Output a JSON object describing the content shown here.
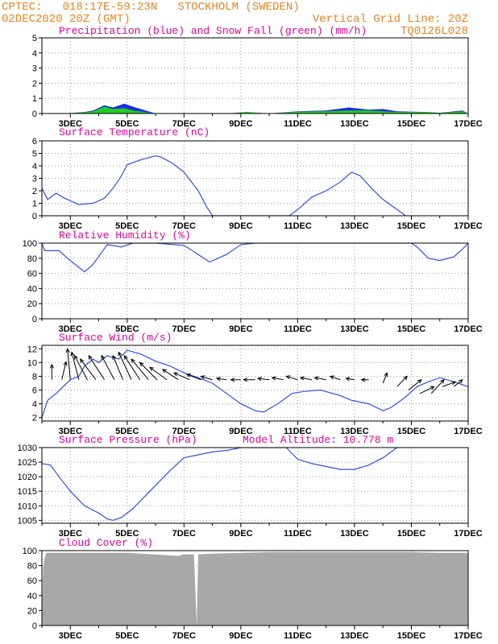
{
  "header": {
    "line1_left": "CPTEC:   018:17E-59:23N   STOCKHOLM (SWEDEN)",
    "line2_left": "02DEC2020 20Z (GMT)",
    "line1_right": "Vertical Grid Line: 20Z",
    "line2_right": "TQ0126L028"
  },
  "colors": {
    "header": "#e8821e",
    "title": "#e000a0",
    "line": "#3050e0",
    "rain": "#1a2ee8",
    "snow": "#22cc22",
    "cloud": "#a8a8a8"
  },
  "x_axis": {
    "start_day": 2,
    "end_day": 17,
    "tick_labels": [
      "3DEC",
      "5DEC",
      "7DEC",
      "9DEC",
      "11DEC",
      "13DEC",
      "15DEC",
      "17DEC"
    ],
    "tick_days": [
      3,
      5,
      7,
      9,
      11,
      13,
      15,
      17
    ],
    "vertical_grid_time": "20Z"
  },
  "chart_data": [
    {
      "id": "precip",
      "type": "area",
      "title": "Precipitation (blue) and Snow Fall (green) (mm/h)",
      "ylim": [
        0,
        5
      ],
      "yticks": [
        0,
        1,
        2,
        3,
        4,
        5
      ],
      "grid": true,
      "series": [
        {
          "name": "blue",
          "color": "#1a2ee8",
          "x": [
            2.0,
            3.0,
            3.1,
            3.5,
            3.8,
            4.2,
            4.5,
            4.9,
            5.2,
            6.0,
            8.5,
            9.2,
            10.0,
            11.0,
            12.0,
            12.8,
            13.5,
            14.0,
            14.5,
            15.5,
            16.0,
            16.8,
            17.0
          ],
          "y": [
            0.0,
            0.0,
            0.05,
            0.1,
            0.2,
            0.55,
            0.4,
            0.65,
            0.45,
            0.0,
            0.0,
            0.1,
            0.0,
            0.15,
            0.2,
            0.4,
            0.25,
            0.3,
            0.15,
            0.1,
            0.05,
            0.2,
            0.0
          ]
        },
        {
          "name": "green",
          "color": "#22cc22",
          "x": [
            2.0,
            3.0,
            3.1,
            3.5,
            3.8,
            4.2,
            4.5,
            4.9,
            5.2,
            6.0,
            8.5,
            9.2,
            10.0,
            11.0,
            12.0,
            12.8,
            13.5,
            14.0,
            14.5,
            15.5,
            16.0,
            16.8,
            17.0
          ],
          "y": [
            0.0,
            0.0,
            0.05,
            0.08,
            0.15,
            0.45,
            0.3,
            0.35,
            0.2,
            0.0,
            0.0,
            0.1,
            0.0,
            0.12,
            0.15,
            0.2,
            0.2,
            0.15,
            0.1,
            0.1,
            0.05,
            0.15,
            0.0
          ]
        }
      ]
    },
    {
      "id": "temp",
      "type": "line",
      "title": "Surface Temperature (nC)",
      "ylim": [
        0,
        6
      ],
      "yticks": [
        0,
        1,
        2,
        3,
        4,
        5,
        6
      ],
      "grid": true,
      "series": [
        {
          "name": "",
          "color": "#3050e0",
          "x": [
            2.0,
            2.2,
            2.5,
            2.8,
            3.0,
            3.3,
            3.8,
            4.2,
            4.5,
            4.8,
            5.0,
            5.5,
            6.0,
            6.2,
            6.6,
            7.0,
            7.5,
            7.8,
            8.0,
            10.7,
            11.0,
            11.5,
            12.0,
            12.5,
            12.9,
            13.2,
            13.6,
            14.0,
            14.5,
            14.8
          ],
          "y": [
            2.2,
            1.3,
            1.8,
            1.4,
            1.2,
            0.9,
            1.0,
            1.4,
            2.2,
            3.2,
            4.1,
            4.5,
            4.8,
            4.7,
            4.2,
            3.5,
            2.0,
            0.7,
            0.0,
            0.0,
            0.5,
            1.5,
            2.0,
            2.7,
            3.5,
            3.2,
            2.2,
            1.3,
            0.5,
            0.0
          ]
        }
      ]
    },
    {
      "id": "rh",
      "type": "line",
      "title": "Relative Humidity (%)",
      "ylim": [
        0,
        100
      ],
      "yticks": [
        0,
        20,
        40,
        60,
        80,
        100
      ],
      "grid": true,
      "series": [
        {
          "name": "",
          "color": "#3050e0",
          "x": [
            2.0,
            2.1,
            2.6,
            2.9,
            3.3,
            3.5,
            3.8,
            4.3,
            4.8,
            5.2,
            6.0,
            7.0,
            7.5,
            7.9,
            8.5,
            9.0,
            9.5,
            11.0,
            13.0,
            15.0,
            15.2,
            15.6,
            16.0,
            16.5,
            16.8,
            17.0
          ],
          "y": [
            100,
            90,
            90,
            80,
            68,
            62,
            72,
            98,
            95,
            100,
            100,
            97,
            85,
            75,
            85,
            98,
            100,
            100,
            100,
            100,
            95,
            80,
            77,
            82,
            92,
            100
          ]
        }
      ]
    },
    {
      "id": "wind",
      "type": "line",
      "title": "Surface Wind (m/s)",
      "ylim": [
        1.5,
        12.5
      ],
      "yticks": [
        2,
        4,
        6,
        8,
        10,
        12
      ],
      "grid": true,
      "series": [
        {
          "name": "",
          "color": "#3050e0",
          "x": [
            2.0,
            2.2,
            2.5,
            3.0,
            3.3,
            3.5,
            3.8,
            4.0,
            4.3,
            4.7,
            5.0,
            5.5,
            6.0,
            6.5,
            7.0,
            7.5,
            8.0,
            8.5,
            9.0,
            9.5,
            9.8,
            10.3,
            10.8,
            11.2,
            11.8,
            12.5,
            12.9,
            13.5,
            14.0,
            14.3,
            14.8,
            15.2,
            15.6,
            16.0,
            16.5,
            17.0
          ],
          "y": [
            2.0,
            4.5,
            5.5,
            7.5,
            8.0,
            9.5,
            10.5,
            10.0,
            11.0,
            10.5,
            11.8,
            11.2,
            10.2,
            9.5,
            8.5,
            7.8,
            7.0,
            5.5,
            4.0,
            3.0,
            2.8,
            4.0,
            5.5,
            5.8,
            6.0,
            5.2,
            4.5,
            4.0,
            3.0,
            3.5,
            5.0,
            6.5,
            7.2,
            7.8,
            7.2,
            6.5
          ]
        }
      ],
      "barbs": {
        "x": [
          2.35,
          2.7,
          3.0,
          3.3,
          3.6,
          3.9,
          4.2,
          4.55,
          4.85,
          5.15,
          5.45,
          5.75,
          6.05,
          6.4,
          6.8,
          7.2,
          7.6,
          8.0,
          8.5,
          9.0,
          9.5,
          10.0,
          10.5,
          11.0,
          11.5,
          12.0,
          12.5,
          13.0,
          13.5,
          14.0,
          14.5,
          14.9,
          15.3,
          15.7,
          16.1,
          16.5
        ],
        "y": [
          7.5,
          7.5,
          7.5,
          7.5,
          7.5,
          7.5,
          7.5,
          7.5,
          7.5,
          7.5,
          7.5,
          7.5,
          7.5,
          7.5,
          7.5,
          7.5,
          7.5,
          7.5,
          7.5,
          7.5,
          7.5,
          7.5,
          7.5,
          7.5,
          7.5,
          7.5,
          7.5,
          7.5,
          7.5,
          7.0,
          6.5,
          6.0,
          5.5,
          5.5,
          6.5,
          6.5
        ],
        "dx": [
          0.0,
          0.15,
          -0.1,
          -0.25,
          -0.45,
          -0.55,
          -0.55,
          -0.45,
          -0.35,
          -0.45,
          -0.55,
          -0.6,
          -0.6,
          -0.6,
          -0.55,
          -0.55,
          -0.5,
          -0.4,
          -0.35,
          -0.35,
          -0.4,
          -0.4,
          -0.4,
          -0.4,
          -0.4,
          -0.4,
          -0.35,
          -0.3,
          -0.25,
          0.15,
          0.35,
          0.45,
          0.5,
          0.45,
          0.45,
          0.3
        ],
        "dy": [
          2.2,
          2.6,
          4.5,
          4.0,
          3.5,
          3.0,
          3.5,
          3.5,
          3.5,
          4.0,
          3.5,
          3.0,
          2.5,
          1.8,
          1.5,
          1.0,
          0.8,
          0.5,
          0.2,
          0.0,
          0.0,
          0.2,
          0.3,
          0.5,
          0.3,
          0.3,
          0.5,
          0.2,
          0.0,
          1.5,
          1.5,
          1.5,
          1.0,
          2.0,
          0.7,
          1.0
        ]
      }
    },
    {
      "id": "pressure",
      "type": "line",
      "title": "Surface Pressure (hPa)",
      "title2": "Model Altitude: 10.778  m",
      "ylim": [
        1004,
        1030
      ],
      "yticks": [
        1005,
        1010,
        1015,
        1020,
        1025,
        1030
      ],
      "grid": true,
      "series": [
        {
          "name": "",
          "color": "#3050e0",
          "x": [
            2.0,
            2.3,
            2.6,
            3.0,
            3.5,
            4.0,
            4.3,
            4.5,
            4.8,
            5.2,
            5.8,
            6.5,
            7.0,
            7.5,
            8.0,
            8.5,
            9.0,
            9.3,
            10.0,
            10.6,
            11.0,
            11.5,
            12.0,
            12.5,
            13.0,
            13.5,
            14.0,
            14.5
          ],
          "y": [
            1024.5,
            1024.0,
            1020.0,
            1015.0,
            1010.0,
            1007.5,
            1005.5,
            1005.0,
            1006.0,
            1009.0,
            1015.0,
            1022.0,
            1026.5,
            1027.5,
            1028.5,
            1029.0,
            1030.0,
            1030.0,
            1030.0,
            1030.0,
            1026.0,
            1024.5,
            1023.5,
            1022.5,
            1022.5,
            1024.0,
            1026.5,
            1030.0
          ]
        }
      ]
    },
    {
      "id": "cloud",
      "type": "area",
      "title": "Cloud Cover (%)",
      "ylim": [
        0,
        100
      ],
      "yticks": [
        0,
        20,
        40,
        60,
        80,
        100
      ],
      "grid": true,
      "series": [
        {
          "name": "",
          "color": "#a8a8a8",
          "x": [
            2.0,
            2.04,
            2.1,
            2.15,
            3.0,
            5.0,
            6.8,
            7.0,
            7.35,
            7.45,
            7.5,
            8.0,
            9.0,
            10.0,
            11.0,
            12.0,
            13.0,
            14.0,
            15.0,
            16.0,
            17.0
          ],
          "y": [
            0,
            78,
            90,
            97,
            97,
            97,
            93,
            95,
            95,
            0,
            95,
            96,
            97,
            98,
            98,
            98,
            98,
            98,
            98,
            97,
            97
          ]
        }
      ]
    }
  ]
}
